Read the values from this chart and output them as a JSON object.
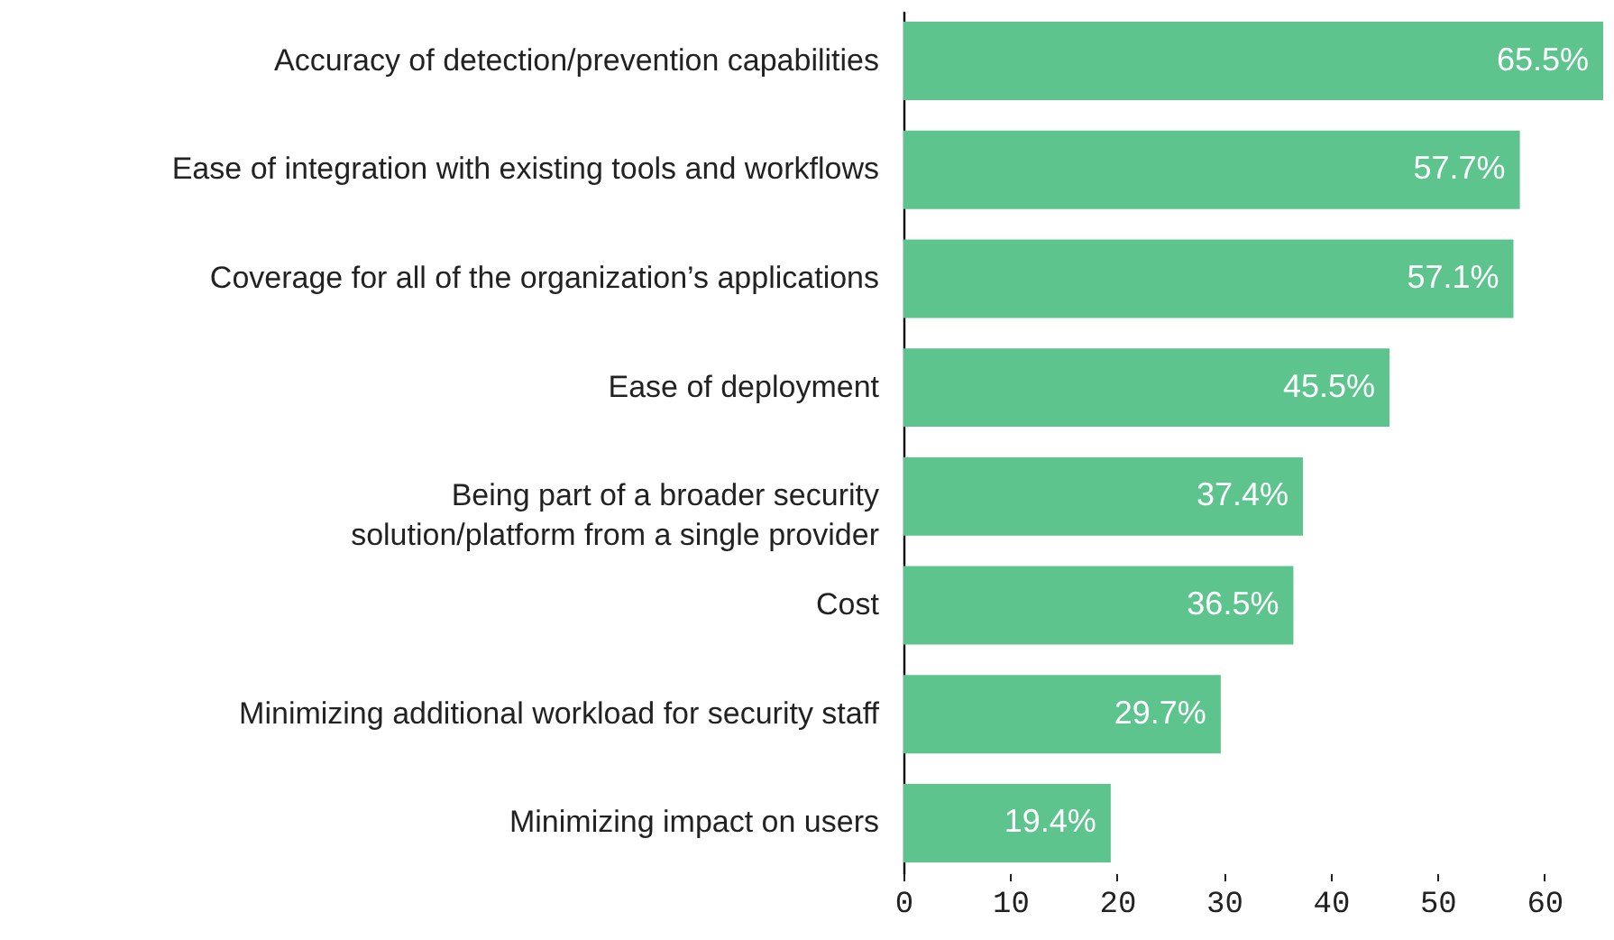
{
  "chart_data": {
    "type": "bar",
    "orientation": "horizontal",
    "categories": [
      "Accuracy of detection/prevention capabilities",
      "Ease of integration with existing tools and workflows",
      "Coverage for all of the organization’s applications",
      "Ease of deployment",
      "Being part of a broader security solution/platform from a single provider",
      "Cost",
      "Minimizing additional workload for security staff",
      "Minimizing impact on users"
    ],
    "values": [
      65.5,
      57.7,
      57.1,
      45.5,
      37.4,
      36.5,
      29.7,
      19.4
    ],
    "value_labels": [
      "65.5%",
      "57.7%",
      "57.1%",
      "45.5%",
      "37.4%",
      "36.5%",
      "29.7%",
      "19.4%"
    ],
    "color": "#5ec48e",
    "xlim": [
      0,
      65.5
    ],
    "xticks": [
      0,
      10,
      20,
      30,
      40,
      50,
      60
    ],
    "grid": false
  }
}
